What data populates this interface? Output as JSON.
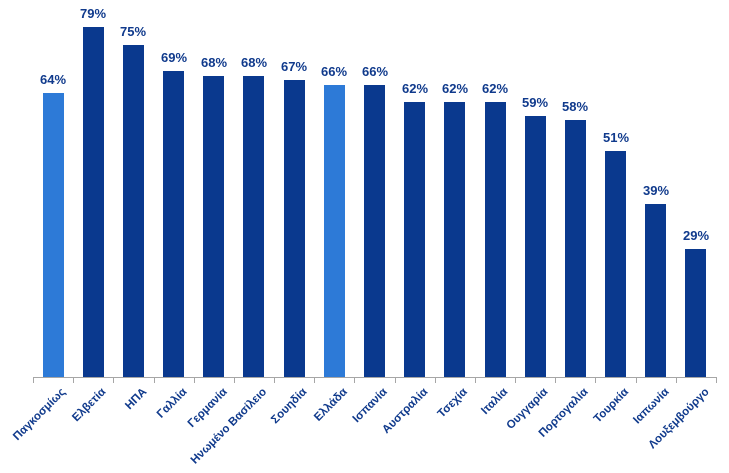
{
  "chart_data": {
    "type": "bar",
    "categories": [
      "Παγκοσμίως",
      "Ελβετία",
      "ΗΠΑ",
      "Γαλλία",
      "Γερμανία",
      "Ηνωμένο Βασίλειο",
      "Σουηδία",
      "Ελλάδα",
      "Ισπανία",
      "Αυστραλία",
      "Τσεχία",
      "Ιταλία",
      "Ουγγαρία",
      "Πορτογαλία",
      "Τουρκία",
      "Ιαπωνία",
      "Λουξεμβούργο"
    ],
    "values": [
      64,
      79,
      75,
      69,
      68,
      68,
      67,
      66,
      66,
      62,
      62,
      62,
      59,
      58,
      51,
      39,
      29
    ],
    "value_suffix": "%",
    "data_labels": [
      "64%",
      "79%",
      "75%",
      "69%",
      "68%",
      "68%",
      "67%",
      "66%",
      "66%",
      "62%",
      "62%",
      "62%",
      "59%",
      "58%",
      "51%",
      "39%",
      "29%"
    ],
    "highlighted_categories": [
      "Παγκοσμίως",
      "Ελλάδα"
    ],
    "xlabel": "",
    "ylabel": "",
    "ylim": [
      0,
      85
    ],
    "grid": false,
    "legend": false,
    "y_axis_visible": false,
    "category_label_rotation": 45,
    "colors": {
      "bar_primary": "#0A398E",
      "bar_highlight": "#2D7AD7",
      "label_text": "#103A8C",
      "axis_line": "#A6A6A6"
    }
  }
}
